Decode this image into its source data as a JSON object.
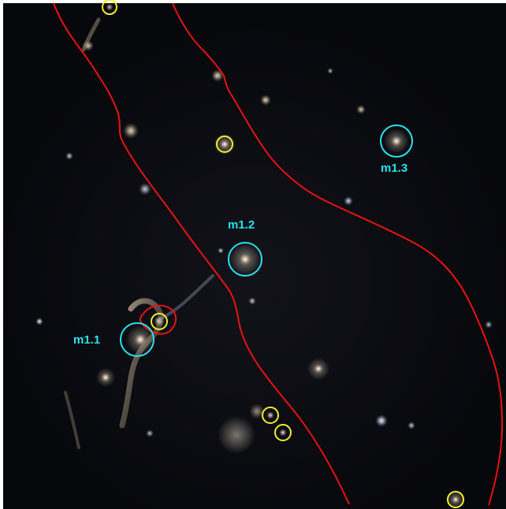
{
  "image": {
    "width": 642,
    "height": 646
  },
  "colors": {
    "marker_cyan": "#27e3ee",
    "marker_yellow": "#f2ee2e",
    "critical_curve_red": "#e61313",
    "sky_dark": "#07080c"
  },
  "labels": {
    "m1_1": "m1.1",
    "m1_2": "m1.2",
    "m1_3": "m1.3"
  }
}
